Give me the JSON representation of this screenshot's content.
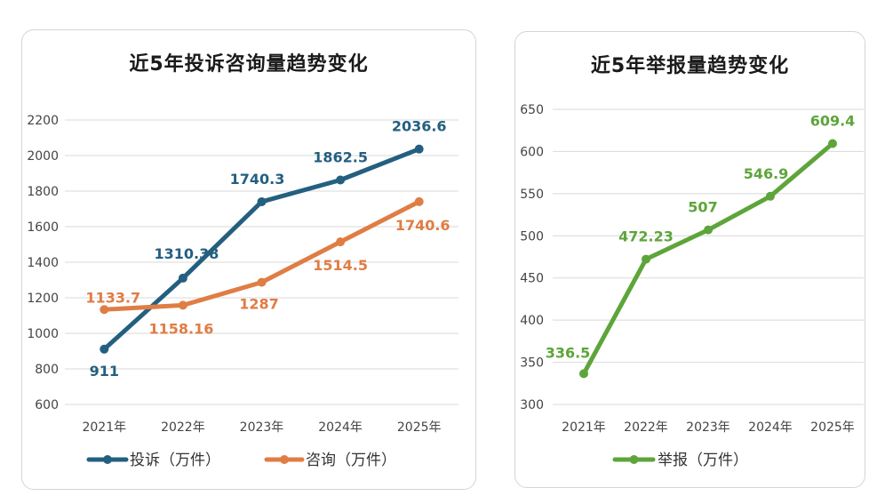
{
  "chart_data": [
    {
      "type": "line",
      "title": "近5年投诉咨询量趋势变化",
      "categories": [
        "2021年",
        "2022年",
        "2023年",
        "2024年",
        "2025年"
      ],
      "ylim": [
        600,
        2200
      ],
      "yticks": [
        600,
        800,
        1000,
        1200,
        1400,
        1600,
        1800,
        2000,
        2200
      ],
      "grid": true,
      "legend_position": "bottom",
      "series": [
        {
          "name": "投诉（万件）",
          "color": "#245f80",
          "values": [
            911,
            1310.38,
            1740.3,
            1862.5,
            2036.6
          ],
          "labels": [
            "911",
            "1310.38",
            "1740.3",
            "1862.5",
            "2036.6"
          ]
        },
        {
          "name": "咨询（万件）",
          "color": "#df7d44",
          "values": [
            1133.7,
            1158.16,
            1287,
            1514.5,
            1740.6
          ],
          "labels": [
            "1133.7",
            "1158.16",
            "1287",
            "1514.5",
            "1740.6"
          ]
        }
      ]
    },
    {
      "type": "line",
      "title": "近5年举报量趋势变化",
      "categories": [
        "2021年",
        "2022年",
        "2023年",
        "2024年",
        "2025年"
      ],
      "ylim": [
        300,
        650
      ],
      "yticks": [
        300,
        350,
        400,
        450,
        500,
        550,
        600,
        650
      ],
      "grid": true,
      "legend_position": "bottom",
      "series": [
        {
          "name": "举报（万件）",
          "color": "#5da53a",
          "values": [
            336.5,
            472.23,
            507,
            546.9,
            609.4
          ],
          "labels": [
            "336.5",
            "472.23",
            "507",
            "546.9",
            "609.4"
          ]
        }
      ]
    }
  ]
}
